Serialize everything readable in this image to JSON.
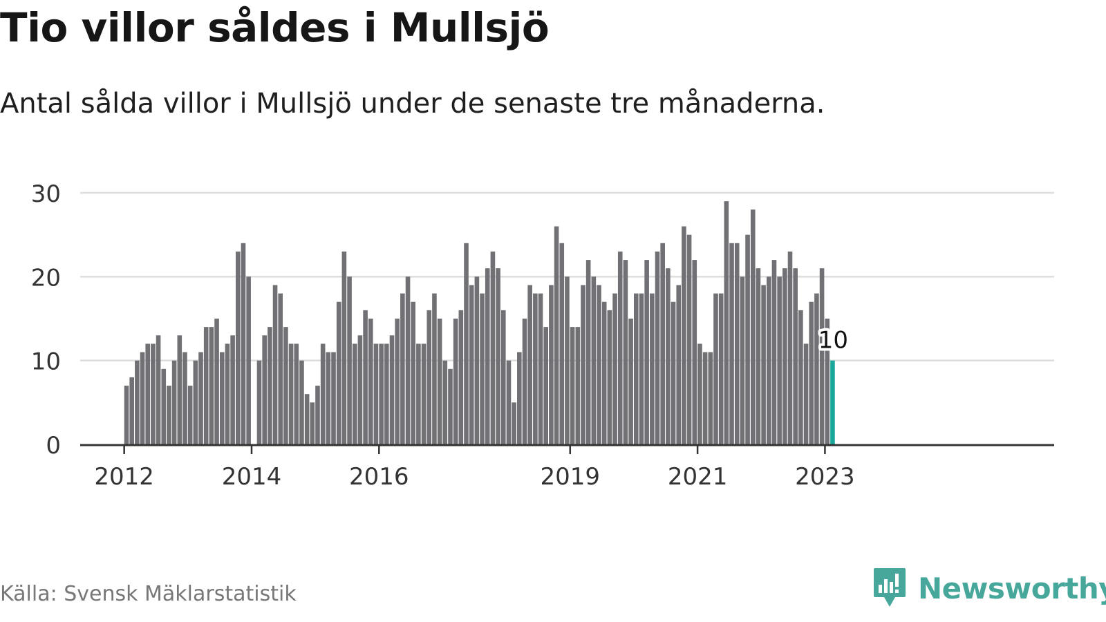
{
  "header": {
    "title": "Tio villor såldes i Mullsjö",
    "subtitle": "Antal sålda villor i Mullsjö under de senaste tre månaderna."
  },
  "footer": {
    "source": "Källa: Svensk Mäklarstatistik",
    "brand": "Newsworthy"
  },
  "colors": {
    "bar": "#707075",
    "highlight": "#1aa79a",
    "grid": "#dddddd",
    "axis": "#333333",
    "tick_text": "#333333",
    "brand": "#47a79b"
  },
  "chart_data": {
    "type": "bar",
    "title": "Tio villor såldes i Mullsjö",
    "xlabel": "",
    "ylabel": "",
    "ylim": [
      0,
      30
    ],
    "yticks": [
      0,
      10,
      20,
      30
    ],
    "grid": true,
    "start_year": 2012,
    "start_month": 1,
    "xtick_labels": [
      "2012",
      "2014",
      "2016",
      "2019",
      "2021",
      "2023"
    ],
    "xtick_month_index": [
      0,
      24,
      48,
      84,
      108,
      132
    ],
    "values": [
      7,
      8,
      10,
      11,
      12,
      12,
      13,
      9,
      7,
      10,
      13,
      11,
      7,
      10,
      11,
      14,
      14,
      15,
      11,
      12,
      13,
      23,
      24,
      20,
      null,
      10,
      13,
      14,
      19,
      18,
      14,
      12,
      12,
      10,
      6,
      5,
      7,
      12,
      11,
      11,
      17,
      23,
      20,
      12,
      13,
      16,
      15,
      12,
      12,
      12,
      13,
      15,
      18,
      20,
      17,
      12,
      12,
      16,
      18,
      15,
      10,
      9,
      15,
      16,
      24,
      19,
      20,
      18,
      21,
      23,
      21,
      16,
      10,
      5,
      11,
      15,
      19,
      18,
      18,
      14,
      19,
      26,
      24,
      20,
      14,
      14,
      19,
      22,
      20,
      19,
      17,
      16,
      18,
      23,
      22,
      15,
      18,
      18,
      22,
      18,
      23,
      24,
      21,
      17,
      19,
      26,
      25,
      22,
      12,
      11,
      11,
      18,
      18,
      29,
      24,
      24,
      20,
      25,
      28,
      21,
      19,
      20,
      22,
      20,
      21,
      23,
      21,
      16,
      12,
      17,
      18,
      21,
      15,
      10
    ],
    "highlight_index": 133,
    "highlight_label": "10"
  }
}
